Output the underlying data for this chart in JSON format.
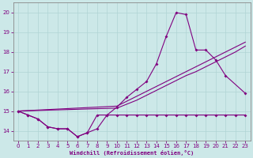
{
  "xlabel": "Windchill (Refroidissement éolien,°C)",
  "line_color": "#800080",
  "bg_color": "#cce8e8",
  "grid_color": "#b0d4d4",
  "ylim": [
    13.5,
    20.5
  ],
  "xlim": [
    -0.5,
    23.5
  ],
  "yticks": [
    14,
    15,
    16,
    17,
    18,
    19,
    20
  ],
  "xticks": [
    0,
    1,
    2,
    3,
    4,
    5,
    6,
    7,
    8,
    9,
    10,
    11,
    12,
    13,
    14,
    15,
    16,
    17,
    18,
    19,
    20,
    21,
    22,
    23
  ],
  "series_main": [
    15.0,
    14.8,
    14.6,
    14.2,
    14.1,
    14.1,
    13.7,
    13.9,
    14.1,
    14.8,
    15.2,
    15.7,
    16.1,
    16.5,
    17.4,
    18.8,
    20.0,
    19.9,
    18.1,
    18.1,
    17.6,
    16.8,
    null,
    15.9
  ],
  "series_low": [
    15.0,
    14.8,
    14.6,
    14.2,
    14.1,
    14.1,
    13.7,
    13.9,
    14.8,
    14.8,
    14.8,
    14.8,
    14.8,
    14.8,
    14.8,
    14.8,
    14.8,
    14.8,
    14.8,
    14.8,
    14.8,
    14.8,
    14.8,
    14.8
  ],
  "trend1_x": [
    0,
    10,
    11,
    12,
    13,
    14,
    15,
    16,
    17,
    18,
    19,
    20,
    21,
    22,
    23
  ],
  "trend1_y": [
    15.0,
    15.15,
    15.35,
    15.55,
    15.8,
    16.05,
    16.3,
    16.55,
    16.8,
    17.0,
    17.25,
    17.5,
    17.75,
    18.0,
    18.3
  ],
  "trend2_x": [
    0,
    10,
    11,
    12,
    13,
    14,
    15,
    16,
    17,
    18,
    19,
    20,
    21,
    22,
    23
  ],
  "trend2_y": [
    15.0,
    15.25,
    15.5,
    15.75,
    16.0,
    16.25,
    16.5,
    16.75,
    17.0,
    17.25,
    17.5,
    17.75,
    18.0,
    18.25,
    18.5
  ]
}
